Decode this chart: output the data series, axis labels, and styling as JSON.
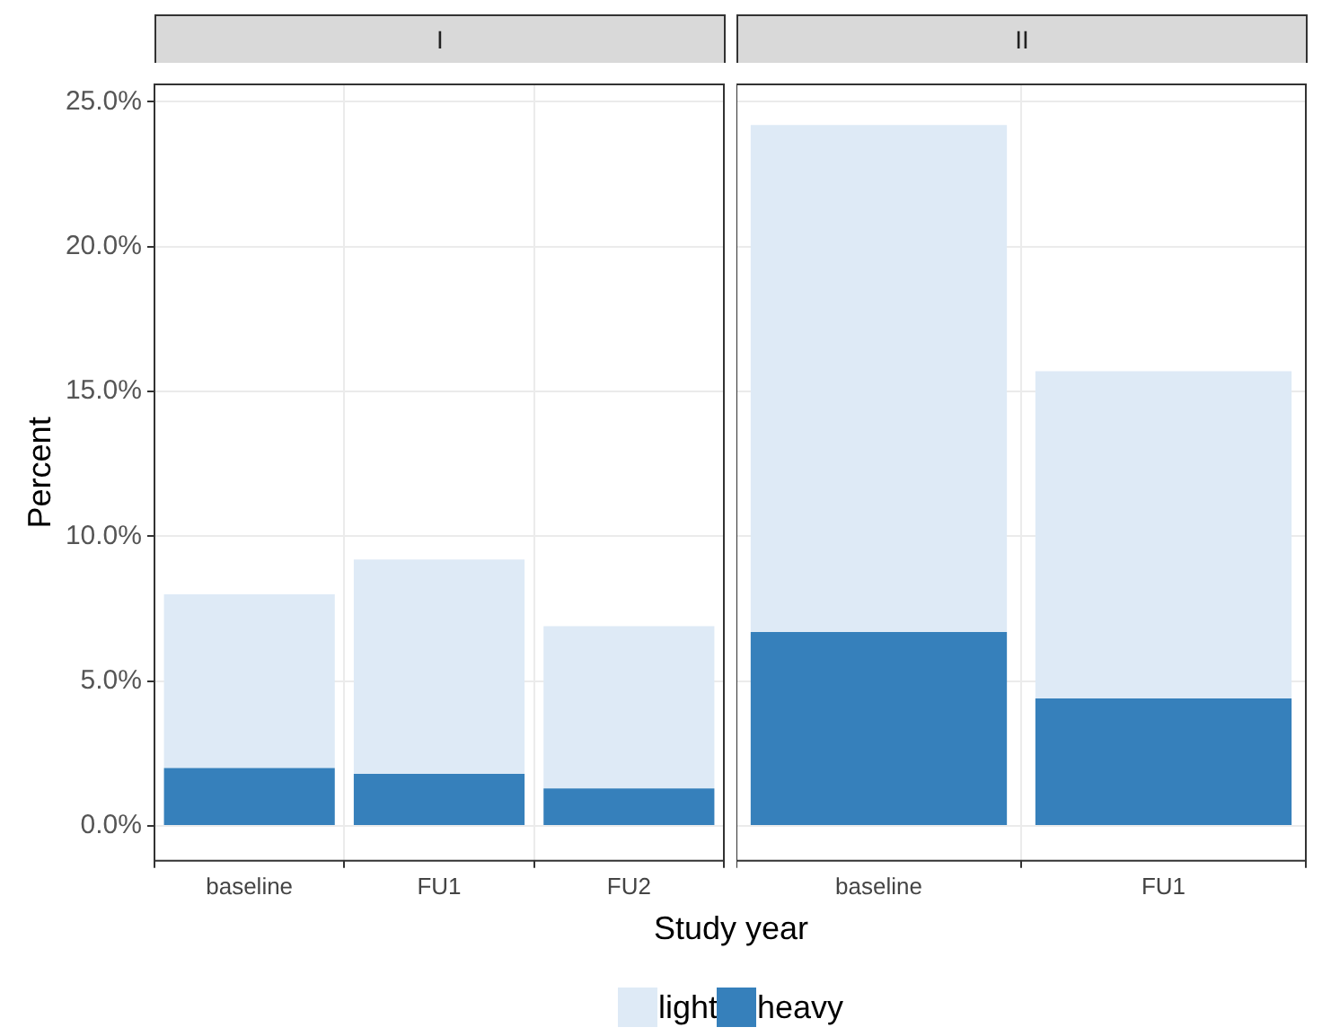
{
  "chart_data": [
    {
      "type": "bar",
      "title": "I",
      "xlabel": "Study year",
      "ylabel": "Percent",
      "categories": [
        "baseline",
        "FU1",
        "FU2"
      ],
      "stacked": true,
      "grid": true,
      "legend": "bottom",
      "tick_labels": "xy",
      "ylim": [
        -1.2,
        25.6
      ],
      "yticks": [
        {
          "value": 0,
          "label": "0.0%"
        },
        {
          "value": 5,
          "label": "5.0%"
        },
        {
          "value": 10,
          "label": "10.0%"
        },
        {
          "value": 15,
          "label": "15.0%"
        },
        {
          "value": 20,
          "label": "20.0%"
        },
        {
          "value": 25,
          "label": "25.0%"
        }
      ],
      "series": [
        {
          "name": "heavy",
          "color": "#3680bb",
          "values": [
            2.0,
            1.8,
            1.3
          ]
        },
        {
          "name": "light",
          "color": "#deeaf6",
          "values": [
            6.0,
            7.4,
            5.6
          ]
        }
      ]
    },
    {
      "type": "bar",
      "title": "II",
      "categories": [
        "baseline",
        "FU1"
      ],
      "stacked": true,
      "grid": true,
      "tick_labels": "x",
      "ylim": [
        -1.2,
        25.6
      ],
      "yticks": [
        0,
        5,
        10,
        15,
        20,
        25
      ],
      "series": [
        {
          "color": "#3680bb",
          "values": [
            6.7,
            4.4
          ]
        },
        {
          "color": "#deeaf6",
          "values": [
            17.5,
            11.3
          ]
        }
      ]
    }
  ]
}
